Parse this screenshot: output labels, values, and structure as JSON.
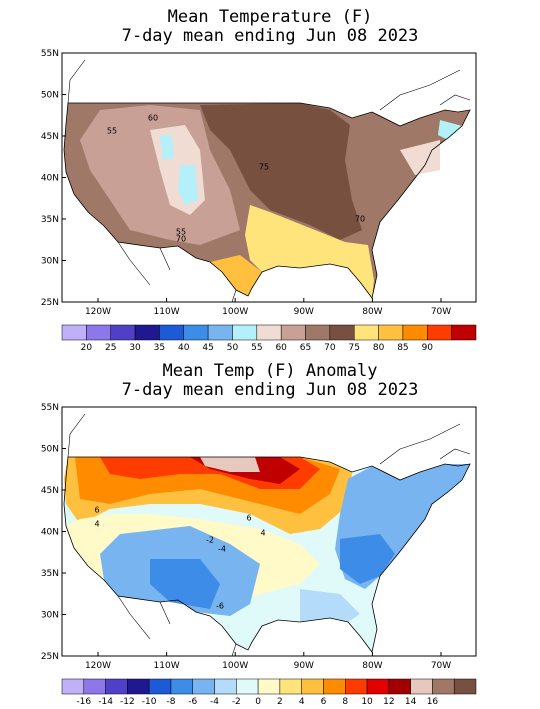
{
  "panels": [
    {
      "title": "Mean Temperature (F)",
      "subtitle": "7-day mean ending Jun 08 2023",
      "lat_labels": [
        "55N",
        "50N",
        "45N",
        "40N",
        "35N",
        "30N",
        "25N"
      ],
      "lon_labels": [
        "120W",
        "110W",
        "100W",
        "90W",
        "80W",
        "70W"
      ],
      "colorbar": {
        "levels": [
          20,
          25,
          30,
          35,
          40,
          45,
          50,
          55,
          60,
          65,
          70,
          75,
          80,
          85,
          90
        ],
        "colors": [
          "#c0b0f8",
          "#8c78e8",
          "#5040c8",
          "#201890",
          "#1c5ad8",
          "#3c8ce8",
          "#78b4f0",
          "#b4f0fa",
          "#f0dcd2",
          "#c8a096",
          "#a07868",
          "#785040",
          "#ffe47c",
          "#ffc040",
          "#ff8c00",
          "#ff3c00",
          "#c00000"
        ]
      },
      "contour_labels": [
        "55",
        "60",
        "75",
        "55",
        "70",
        "70"
      ]
    },
    {
      "title": "Mean Temp (F) Anomaly",
      "subtitle": "7-day mean ending Jun 08 2023",
      "lat_labels": [
        "55N",
        "50N",
        "45N",
        "40N",
        "35N",
        "30N",
        "25N"
      ],
      "lon_labels": [
        "120W",
        "110W",
        "100W",
        "90W",
        "80W",
        "70W"
      ],
      "colorbar": {
        "levels": [
          -16,
          -14,
          -12,
          -10,
          -8,
          -6,
          -4,
          -2,
          0,
          2,
          4,
          6,
          8,
          10,
          12,
          14,
          16
        ],
        "colors": [
          "#c0b0f8",
          "#8c78e8",
          "#5040c8",
          "#201890",
          "#1c5ad8",
          "#3c8ce8",
          "#78b4f0",
          "#b4dcfa",
          "#e0fafa",
          "#fffac8",
          "#ffe47c",
          "#ffc040",
          "#ff8c00",
          "#ff3c00",
          "#e00000",
          "#a00000",
          "#e6c8be",
          "#a07868",
          "#785040"
        ]
      },
      "contour_labels": [
        "6",
        "4",
        "6",
        "4",
        "-2",
        "-4",
        "-6"
      ]
    }
  ]
}
